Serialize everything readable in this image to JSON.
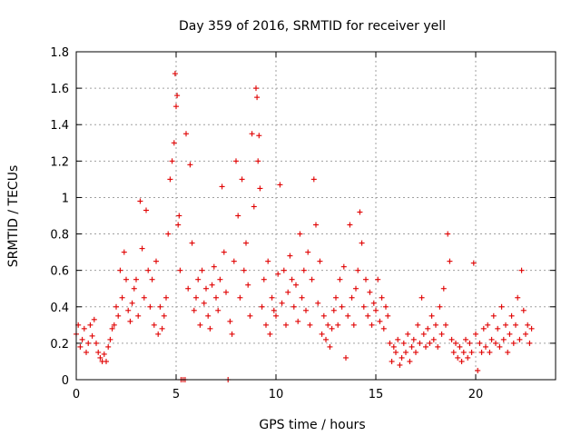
{
  "chart_data": {
    "type": "scatter",
    "title": "Day 359 of 2016, SRMTID for receiver yell",
    "xlabel": "GPS time / hours",
    "ylabel": "SRMTID / TECUs",
    "xlim": [
      0,
      24
    ],
    "ylim": [
      0,
      1.8
    ],
    "xticks": [
      0,
      5,
      10,
      15,
      20
    ],
    "xtick_labels": [
      "0",
      "5",
      "10",
      "15",
      "20"
    ],
    "yticks": [
      0,
      0.2,
      0.4,
      0.6,
      0.8,
      1,
      1.2,
      1.4,
      1.6,
      1.8
    ],
    "ytick_labels": [
      "0",
      "0.2",
      "0.4",
      "0.6",
      "0.8",
      "1",
      "1.2",
      "1.4",
      "1.6",
      "1.8"
    ],
    "grid": true,
    "marker": "+",
    "color": "#e00000",
    "series": [
      {
        "name": "SRMTID",
        "points": [
          [
            0.0,
            0.25
          ],
          [
            0.1,
            0.3
          ],
          [
            0.2,
            0.18
          ],
          [
            0.3,
            0.22
          ],
          [
            0.4,
            0.28
          ],
          [
            0.5,
            0.15
          ],
          [
            0.6,
            0.2
          ],
          [
            0.7,
            0.3
          ],
          [
            0.8,
            0.24
          ],
          [
            0.9,
            0.33
          ],
          [
            1.0,
            0.2
          ],
          [
            1.1,
            0.15
          ],
          [
            1.2,
            0.12
          ],
          [
            1.3,
            0.1
          ],
          [
            1.4,
            0.14
          ],
          [
            1.5,
            0.1
          ],
          [
            1.6,
            0.18
          ],
          [
            1.7,
            0.22
          ],
          [
            1.8,
            0.28
          ],
          [
            1.9,
            0.3
          ],
          [
            2.0,
            0.4
          ],
          [
            2.1,
            0.35
          ],
          [
            2.2,
            0.6
          ],
          [
            2.3,
            0.45
          ],
          [
            2.4,
            0.7
          ],
          [
            2.5,
            0.55
          ],
          [
            2.6,
            0.38
          ],
          [
            2.7,
            0.32
          ],
          [
            2.8,
            0.42
          ],
          [
            2.9,
            0.5
          ],
          [
            3.0,
            0.55
          ],
          [
            3.1,
            0.35
          ],
          [
            3.2,
            0.98
          ],
          [
            3.3,
            0.72
          ],
          [
            3.4,
            0.45
          ],
          [
            3.5,
            0.93
          ],
          [
            3.6,
            0.6
          ],
          [
            3.7,
            0.4
          ],
          [
            3.8,
            0.55
          ],
          [
            3.9,
            0.3
          ],
          [
            4.0,
            0.65
          ],
          [
            4.1,
            0.25
          ],
          [
            4.2,
            0.4
          ],
          [
            4.3,
            0.28
          ],
          [
            4.4,
            0.35
          ],
          [
            4.5,
            0.45
          ],
          [
            4.6,
            0.8
          ],
          [
            4.7,
            1.1
          ],
          [
            4.8,
            1.2
          ],
          [
            4.9,
            1.3
          ],
          [
            4.95,
            1.68
          ],
          [
            5.0,
            1.5
          ],
          [
            5.05,
            1.56
          ],
          [
            5.1,
            0.85
          ],
          [
            5.15,
            0.9
          ],
          [
            5.2,
            0.6
          ],
          [
            5.25,
            0.0
          ],
          [
            5.35,
            0.0
          ],
          [
            5.45,
            0.0
          ],
          [
            5.5,
            1.35
          ],
          [
            5.6,
            0.5
          ],
          [
            5.7,
            1.18
          ],
          [
            5.8,
            0.75
          ],
          [
            5.9,
            0.38
          ],
          [
            6.0,
            0.45
          ],
          [
            6.1,
            0.55
          ],
          [
            6.2,
            0.3
          ],
          [
            6.3,
            0.6
          ],
          [
            6.4,
            0.42
          ],
          [
            6.5,
            0.5
          ],
          [
            6.6,
            0.35
          ],
          [
            6.7,
            0.28
          ],
          [
            6.8,
            0.52
          ],
          [
            6.9,
            0.62
          ],
          [
            7.0,
            0.45
          ],
          [
            7.1,
            0.38
          ],
          [
            7.2,
            0.55
          ],
          [
            7.3,
            1.06
          ],
          [
            7.4,
            0.7
          ],
          [
            7.5,
            0.48
          ],
          [
            7.6,
            0.0
          ],
          [
            7.7,
            0.32
          ],
          [
            7.8,
            0.25
          ],
          [
            7.9,
            0.65
          ],
          [
            8.0,
            1.2
          ],
          [
            8.1,
            0.9
          ],
          [
            8.2,
            0.45
          ],
          [
            8.3,
            1.1
          ],
          [
            8.4,
            0.6
          ],
          [
            8.5,
            0.75
          ],
          [
            8.6,
            0.52
          ],
          [
            8.7,
            0.35
          ],
          [
            8.8,
            1.35
          ],
          [
            8.9,
            0.95
          ],
          [
            9.0,
            1.6
          ],
          [
            9.05,
            1.55
          ],
          [
            9.1,
            1.2
          ],
          [
            9.15,
            1.34
          ],
          [
            9.2,
            1.05
          ],
          [
            9.3,
            0.4
          ],
          [
            9.4,
            0.55
          ],
          [
            9.5,
            0.3
          ],
          [
            9.6,
            0.65
          ],
          [
            9.7,
            0.25
          ],
          [
            9.8,
            0.45
          ],
          [
            9.9,
            0.38
          ],
          [
            10.0,
            0.35
          ],
          [
            10.1,
            0.58
          ],
          [
            10.2,
            1.07
          ],
          [
            10.3,
            0.42
          ],
          [
            10.4,
            0.6
          ],
          [
            10.5,
            0.3
          ],
          [
            10.6,
            0.48
          ],
          [
            10.7,
            0.68
          ],
          [
            10.8,
            0.55
          ],
          [
            10.9,
            0.4
          ],
          [
            11.0,
            0.52
          ],
          [
            11.1,
            0.32
          ],
          [
            11.2,
            0.8
          ],
          [
            11.3,
            0.45
          ],
          [
            11.4,
            0.6
          ],
          [
            11.5,
            0.38
          ],
          [
            11.6,
            0.7
          ],
          [
            11.7,
            0.3
          ],
          [
            11.8,
            0.55
          ],
          [
            11.9,
            1.1
          ],
          [
            12.0,
            0.85
          ],
          [
            12.1,
            0.42
          ],
          [
            12.2,
            0.65
          ],
          [
            12.3,
            0.25
          ],
          [
            12.4,
            0.35
          ],
          [
            12.5,
            0.22
          ],
          [
            12.6,
            0.3
          ],
          [
            12.7,
            0.18
          ],
          [
            12.8,
            0.28
          ],
          [
            12.9,
            0.38
          ],
          [
            13.0,
            0.45
          ],
          [
            13.1,
            0.3
          ],
          [
            13.2,
            0.55
          ],
          [
            13.3,
            0.4
          ],
          [
            13.4,
            0.62
          ],
          [
            13.5,
            0.12
          ],
          [
            13.6,
            0.35
          ],
          [
            13.7,
            0.85
          ],
          [
            13.8,
            0.45
          ],
          [
            13.9,
            0.3
          ],
          [
            14.0,
            0.5
          ],
          [
            14.1,
            0.6
          ],
          [
            14.2,
            0.92
          ],
          [
            14.3,
            0.75
          ],
          [
            14.4,
            0.4
          ],
          [
            14.5,
            0.55
          ],
          [
            14.6,
            0.35
          ],
          [
            14.7,
            0.48
          ],
          [
            14.8,
            0.3
          ],
          [
            14.9,
            0.42
          ],
          [
            15.0,
            0.38
          ],
          [
            15.1,
            0.55
          ],
          [
            15.2,
            0.32
          ],
          [
            15.3,
            0.45
          ],
          [
            15.4,
            0.28
          ],
          [
            15.5,
            0.4
          ],
          [
            15.6,
            0.35
          ],
          [
            15.7,
            0.2
          ],
          [
            15.8,
            0.1
          ],
          [
            15.9,
            0.18
          ],
          [
            16.0,
            0.15
          ],
          [
            16.1,
            0.22
          ],
          [
            16.2,
            0.08
          ],
          [
            16.3,
            0.12
          ],
          [
            16.4,
            0.2
          ],
          [
            16.5,
            0.15
          ],
          [
            16.6,
            0.25
          ],
          [
            16.7,
            0.1
          ],
          [
            16.8,
            0.18
          ],
          [
            16.9,
            0.22
          ],
          [
            17.0,
            0.15
          ],
          [
            17.1,
            0.3
          ],
          [
            17.2,
            0.2
          ],
          [
            17.3,
            0.45
          ],
          [
            17.4,
            0.25
          ],
          [
            17.5,
            0.18
          ],
          [
            17.6,
            0.28
          ],
          [
            17.7,
            0.2
          ],
          [
            17.8,
            0.35
          ],
          [
            17.9,
            0.22
          ],
          [
            18.0,
            0.3
          ],
          [
            18.1,
            0.18
          ],
          [
            18.2,
            0.4
          ],
          [
            18.3,
            0.25
          ],
          [
            18.4,
            0.5
          ],
          [
            18.5,
            0.3
          ],
          [
            18.6,
            0.8
          ],
          [
            18.7,
            0.65
          ],
          [
            18.8,
            0.22
          ],
          [
            18.9,
            0.15
          ],
          [
            19.0,
            0.2
          ],
          [
            19.1,
            0.12
          ],
          [
            19.2,
            0.18
          ],
          [
            19.3,
            0.1
          ],
          [
            19.4,
            0.15
          ],
          [
            19.5,
            0.22
          ],
          [
            19.6,
            0.12
          ],
          [
            19.7,
            0.2
          ],
          [
            19.8,
            0.15
          ],
          [
            19.9,
            0.64
          ],
          [
            20.0,
            0.25
          ],
          [
            20.1,
            0.05
          ],
          [
            20.2,
            0.2
          ],
          [
            20.3,
            0.15
          ],
          [
            20.4,
            0.28
          ],
          [
            20.5,
            0.18
          ],
          [
            20.6,
            0.3
          ],
          [
            20.7,
            0.15
          ],
          [
            20.8,
            0.22
          ],
          [
            20.9,
            0.35
          ],
          [
            21.0,
            0.2
          ],
          [
            21.1,
            0.28
          ],
          [
            21.2,
            0.18
          ],
          [
            21.3,
            0.4
          ],
          [
            21.4,
            0.22
          ],
          [
            21.5,
            0.3
          ],
          [
            21.6,
            0.15
          ],
          [
            21.7,
            0.25
          ],
          [
            21.8,
            0.35
          ],
          [
            21.9,
            0.2
          ],
          [
            22.0,
            0.3
          ],
          [
            22.1,
            0.45
          ],
          [
            22.2,
            0.22
          ],
          [
            22.3,
            0.6
          ],
          [
            22.4,
            0.38
          ],
          [
            22.5,
            0.25
          ],
          [
            22.6,
            0.3
          ],
          [
            22.7,
            0.2
          ],
          [
            22.8,
            0.28
          ]
        ]
      }
    ]
  }
}
